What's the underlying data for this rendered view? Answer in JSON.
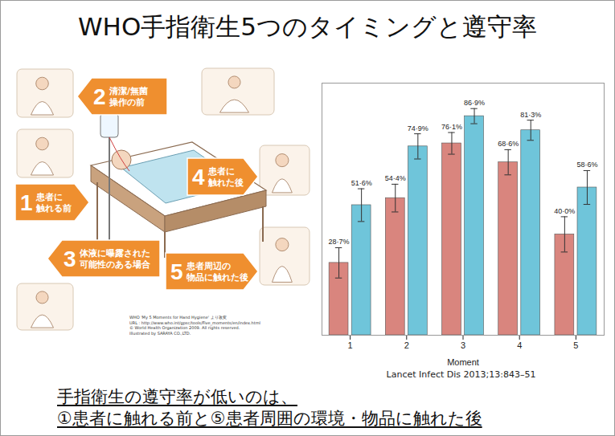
{
  "title": "WHO手指衛生5つのタイミングと遵守率",
  "diagram": {
    "moments": [
      {
        "number": "1",
        "lines": [
          "患者に",
          "触れる前"
        ]
      },
      {
        "number": "2",
        "lines": [
          "清潔/無菌",
          "操作の前"
        ]
      },
      {
        "number": "3",
        "lines": [
          "体液に曝露された",
          "可能性のある場合"
        ]
      },
      {
        "number": "4",
        "lines": [
          "患者に",
          "触れた後"
        ]
      },
      {
        "number": "5",
        "lines": [
          "患者周辺の",
          "物品に触れた後"
        ]
      }
    ],
    "credit": [
      "WHO 'My 5 Moments for Hand Hygiene' より改変",
      "URL : http://www.who.int/gpsc/tools/Five_moments/en/index.html",
      "© World Health Organization 2009. All rights reserved.",
      "Illustrated by SARAYA CO.,LTD."
    ]
  },
  "chart_data": {
    "type": "bar",
    "categories": [
      "1",
      "2",
      "3",
      "4",
      "5"
    ],
    "x_label": "Moment",
    "source": "Lancet Infect Dis 2013;13:843–51",
    "series": [
      {
        "color": "#d9857e",
        "values": [
          28.7,
          54.4,
          76.1,
          68.6,
          40.0
        ],
        "value_labels": [
          "28·7%",
          "54·4%",
          "76·1%",
          "68·6%",
          "40·0%"
        ],
        "errors": [
          6,
          5.5,
          4.3,
          5,
          7
        ]
      },
      {
        "color": "#6fc5da",
        "values": [
          51.6,
          74.9,
          86.9,
          81.3,
          58.6
        ],
        "value_labels": [
          "51·6%",
          "74·9%",
          "86·9%",
          "81·3%",
          "58·6%"
        ],
        "errors": [
          6.5,
          5,
          3,
          4,
          6.7
        ]
      }
    ],
    "ylim": [
      0,
      100
    ],
    "tick_labels": "x",
    "data_labels": true
  },
  "caption": [
    "手指衛生の遵守率が低いのは、",
    "①患者に触れる前と⑤患者周囲の環境・物品に触れた後"
  ]
}
